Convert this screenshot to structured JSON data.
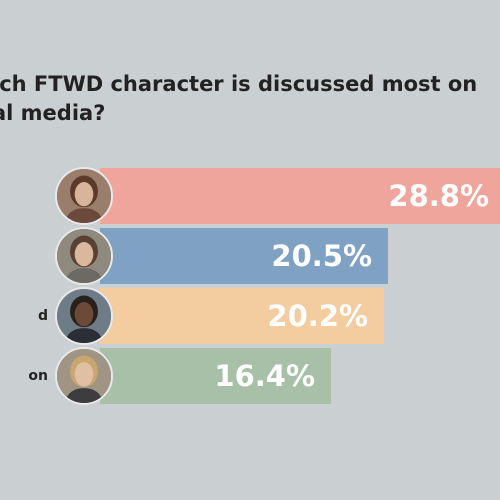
{
  "chart_data": {
    "type": "bar",
    "orientation": "horizontal",
    "title_lines": [
      "ich FTWD character is discussed most on",
      "al media?"
    ],
    "categories": [
      "",
      "",
      "d",
      "on"
    ],
    "values": [
      28.8,
      20.5,
      20.2,
      16.4
    ],
    "value_labels": [
      "28.8%",
      "20.5%",
      "20.2%",
      "16.4%"
    ],
    "colors": [
      "#f0a59c",
      "#7ea1c4",
      "#f3ccA0",
      "#a8c0a7"
    ],
    "xlim": [
      0,
      28.8
    ],
    "grid": false,
    "legend": "none"
  },
  "avatars": [
    {
      "name": "avatar-woman-long-hair-icon",
      "bg": "#9a7d6a",
      "hair": "#5b3a29",
      "skin": "#d8b49b",
      "shirt": "#6b4a3c"
    },
    {
      "name": "avatar-man-long-hair-icon",
      "bg": "#8e8a7e",
      "hair": "#5a4030",
      "skin": "#d9b89e",
      "shirt": "#6d6a63"
    },
    {
      "name": "avatar-man-suit-icon",
      "bg": "#6e7c88",
      "hair": "#2a211c",
      "skin": "#6b4a38",
      "shirt": "#2b2e36"
    },
    {
      "name": "avatar-woman-blonde-icon",
      "bg": "#a09484",
      "hair": "#c9a670",
      "skin": "#e1bfa2",
      "shirt": "#3d3d40"
    }
  ]
}
